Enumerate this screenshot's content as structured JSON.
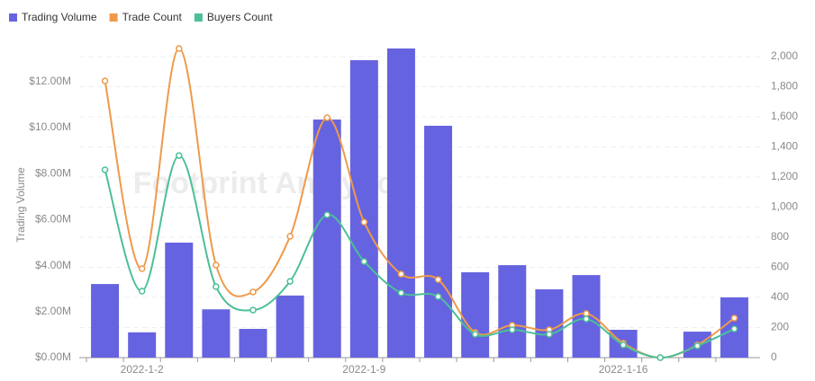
{
  "chart_data": {
    "type": "bar_line",
    "y_axis_label": "Trading Volume",
    "watermark": "Footprint Analytics",
    "categories": [
      null,
      "2022-1-2",
      null,
      null,
      null,
      null,
      null,
      "2022-1-9",
      null,
      null,
      null,
      null,
      null,
      null,
      "2022-1-16",
      null,
      null,
      null
    ],
    "series": [
      {
        "name": "Trading Volume",
        "type": "bar",
        "color": "#6663e0",
        "values": [
          3.2,
          1.1,
          5.0,
          2.1,
          1.25,
          2.7,
          10.35,
          12.93,
          13.44,
          10.08,
          3.71,
          4.02,
          2.97,
          3.59,
          1.21,
          0,
          1.13,
          2.62
        ]
      },
      {
        "name": "Trade Count",
        "type": "line",
        "axis": "y2",
        "color": "#ee9a4a",
        "values": [
          1839,
          591,
          2054,
          615,
          436,
          806,
          1594,
          901,
          555,
          519,
          167,
          215,
          185,
          293,
          96,
          0,
          84,
          263
        ]
      },
      {
        "name": "Buyers Count",
        "type": "line",
        "axis": "y2",
        "color": "#4cbf98",
        "values": [
          1248,
          442,
          1343,
          472,
          316,
          507,
          949,
          639,
          430,
          406,
          155,
          185,
          155,
          257,
          84,
          0,
          78,
          191
        ]
      }
    ],
    "ylim": [
      0,
      14
    ],
    "yticks": [
      {
        "value": 0,
        "label": "$0.00M"
      },
      {
        "value": 2,
        "label": "$2.00M"
      },
      {
        "value": 4,
        "label": "$4.00M"
      },
      {
        "value": 6,
        "label": "$6.00M"
      },
      {
        "value": 8,
        "label": "$8.00M"
      },
      {
        "value": 10,
        "label": "$10.00M"
      },
      {
        "value": 12,
        "label": "$12.00M"
      }
    ],
    "y2lim": [
      0,
      2140
    ],
    "y2ticks": [
      0,
      200,
      400,
      600,
      800,
      {
        "value": 1000,
        "label": "1,000"
      },
      {
        "value": 1200,
        "label": "1,200"
      },
      {
        "value": 1400,
        "label": "1,400"
      },
      {
        "value": 1600,
        "label": "1,600"
      },
      {
        "value": 1800,
        "label": "1,800"
      },
      {
        "value": 2000,
        "label": "2,000"
      }
    ],
    "grid": true,
    "legend": "top-left"
  }
}
